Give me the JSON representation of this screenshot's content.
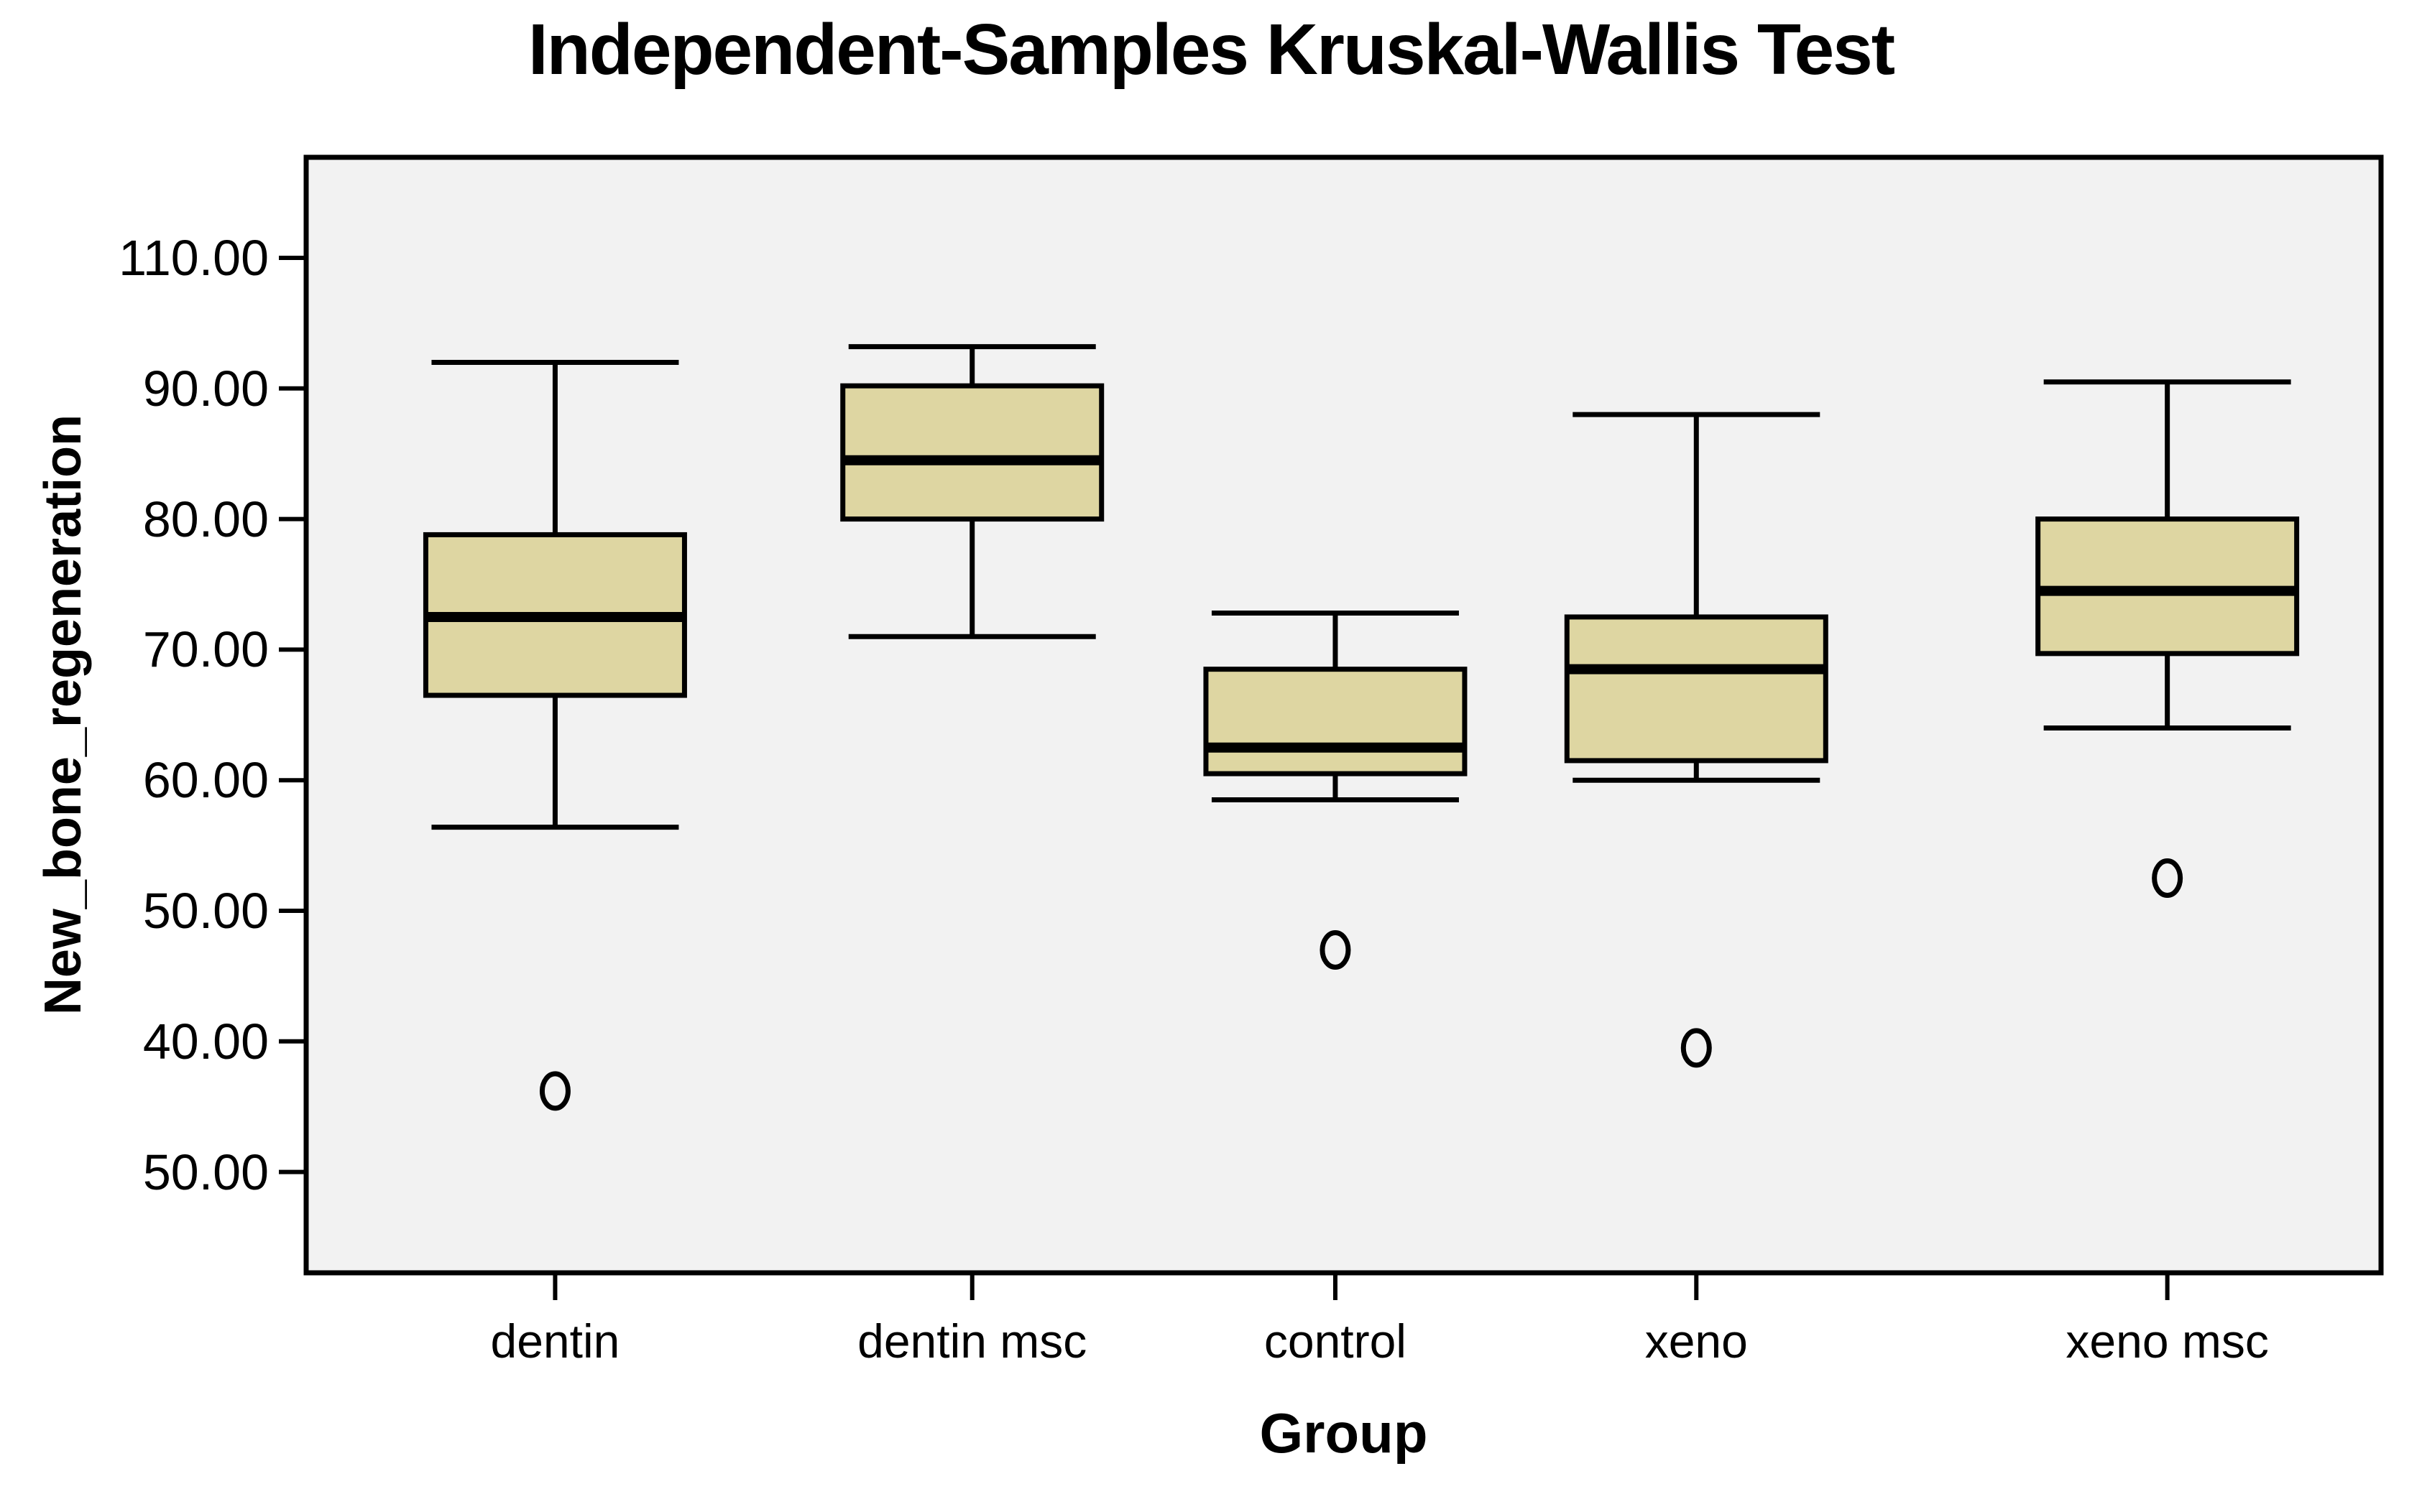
{
  "title": "Independent-Samples Kruskal-Wallis Test",
  "y_axis": {
    "label": "New_bone_regeneration",
    "tick_labels": [
      "110.00",
      "90.00",
      "80.00",
      "70.00",
      "60.00",
      "50.00",
      "40.00",
      "50.00"
    ]
  },
  "x_axis": {
    "label": "Group",
    "categories": [
      "dentin",
      "dentin msc",
      "control",
      "xeno",
      "xeno msc"
    ]
  },
  "colors": {
    "box_fill": "#ded6a2",
    "panel_bg": "#f2f2f2",
    "line": "#000000",
    "page_bg": "#ffffff"
  },
  "chart_data": {
    "type": "boxplot",
    "title": "Independent-Samples Kruskal-Wallis Test",
    "xlabel": "Group",
    "ylabel": "New_bone_regeneration",
    "categories": [
      "dentin",
      "dentin msc",
      "control",
      "xeno",
      "xeno msc"
    ],
    "y_tick_labels": [
      "110.00",
      "90.00",
      "80.00",
      "70.00",
      "60.00",
      "50.00",
      "40.00",
      "50.00"
    ],
    "y_tick_step": 10,
    "grid": false,
    "legend": false,
    "series": [
      {
        "name": "dentin",
        "whisker_low": 56.4,
        "q1": 66.5,
        "median": 72.5,
        "q3": 78.8,
        "whisker_high": 92.0,
        "outliers": [
          36.2
        ]
      },
      {
        "name": "dentin msc",
        "whisker_low": 71.0,
        "q1": 80.0,
        "median": 84.5,
        "q3": 90.2,
        "whisker_high": 93.2,
        "outliers": []
      },
      {
        "name": "control",
        "whisker_low": 58.5,
        "q1": 60.5,
        "median": 62.5,
        "q3": 68.5,
        "whisker_high": 72.8,
        "outliers": [
          47.0
        ]
      },
      {
        "name": "xeno",
        "whisker_low": 60.0,
        "q1": 61.5,
        "median": 68.5,
        "q3": 72.5,
        "whisker_high": 88.0,
        "outliers": [
          39.5
        ]
      },
      {
        "name": "xeno msc",
        "whisker_low": 64.0,
        "q1": 69.7,
        "median": 74.5,
        "q3": 80.0,
        "whisker_high": 90.5,
        "outliers": [
          52.5
        ]
      }
    ]
  }
}
